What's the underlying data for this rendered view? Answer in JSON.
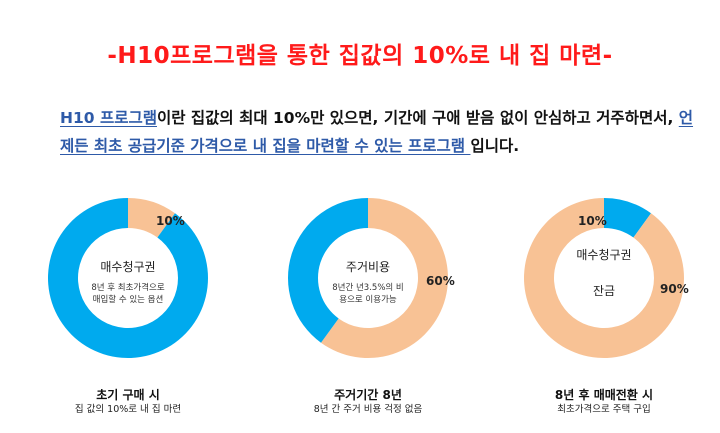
{
  "title": "-H10프로그램을 통한 집값의 10%로 내 집 마련-",
  "intro": {
    "link1": "H10 프로그램",
    "text1": "이란 집값의 최대 10%만 있으면, 기간에 구애 받음 없이 안심하고 거주하면서, ",
    "link2": "언제든 최초 공급기준 가격으로 내 집을 마련할 수 있는 프로그램 ",
    "text2": "입니다."
  },
  "colors": {
    "blue": "#00aaee",
    "peach": "#f8c295",
    "title_red": "#ff1a1a",
    "link_blue": "#2e5aa8"
  },
  "chart_data": [
    {
      "type": "pie",
      "center_title": "매수청구권",
      "center_sub": "8년 후 최초가격으로 매입할 수 있는 옵션",
      "slices": [
        {
          "label": "10%",
          "value": 10,
          "color": "#f8c295"
        },
        {
          "label": "",
          "value": 90,
          "color": "#00aaee"
        }
      ],
      "caption": "초기 구매 시",
      "caption_sub": "집 값의 10%로 내 집 마련"
    },
    {
      "type": "pie",
      "center_title": "주거비용",
      "center_sub": "8년간 년3.5%의 비용으로 이용가능",
      "slices": [
        {
          "label": "60%",
          "value": 60,
          "color": "#f8c295"
        },
        {
          "label": "",
          "value": 40,
          "color": "#00aaee"
        }
      ],
      "caption": "주거기간 8년",
      "caption_sub": "8년 간 주거 비용 걱정 없음"
    },
    {
      "type": "pie",
      "center_title": "매수청구권",
      "center_sub": "",
      "inner_label": "잔금",
      "slices": [
        {
          "label": "10%",
          "value": 10,
          "color": "#00aaee"
        },
        {
          "label": "90%",
          "value": 90,
          "color": "#f8c295"
        }
      ],
      "caption": "8년 후 매매전환 시",
      "caption_sub": "최초가격으로 주택 구입"
    }
  ]
}
